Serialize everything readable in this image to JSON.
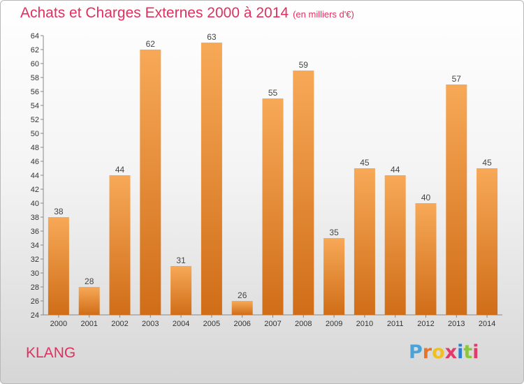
{
  "header": {
    "title": "Achats et Charges Externes 2000 à 2014",
    "unit": "(en milliers d'€)"
  },
  "footer": {
    "place": "KLANG",
    "logo_text": "Proxiti",
    "logo_colors": [
      "#4aa3d8",
      "#e8742a",
      "#f0c020",
      "#e23a6a",
      "#2a7fd0",
      "#8cc63f",
      "#e23a6a"
    ]
  },
  "colors": {
    "title": "#e0305f",
    "bar_top": "#f7a957",
    "bar_bottom": "#d06d18"
  },
  "chart_data": {
    "type": "bar",
    "categories": [
      "2000",
      "2001",
      "2002",
      "2003",
      "2004",
      "2005",
      "2006",
      "2007",
      "2008",
      "2009",
      "2010",
      "2011",
      "2012",
      "2013",
      "2014"
    ],
    "values": [
      38,
      28,
      44,
      62,
      31,
      63,
      26,
      55,
      59,
      35,
      45,
      44,
      40,
      57,
      45
    ],
    "ylim": [
      24,
      64
    ],
    "yticks": [
      24,
      26,
      28,
      30,
      32,
      34,
      36,
      38,
      40,
      42,
      44,
      46,
      48,
      50,
      52,
      54,
      56,
      58,
      60,
      62,
      64
    ],
    "grid": false,
    "show_data_labels": true
  }
}
